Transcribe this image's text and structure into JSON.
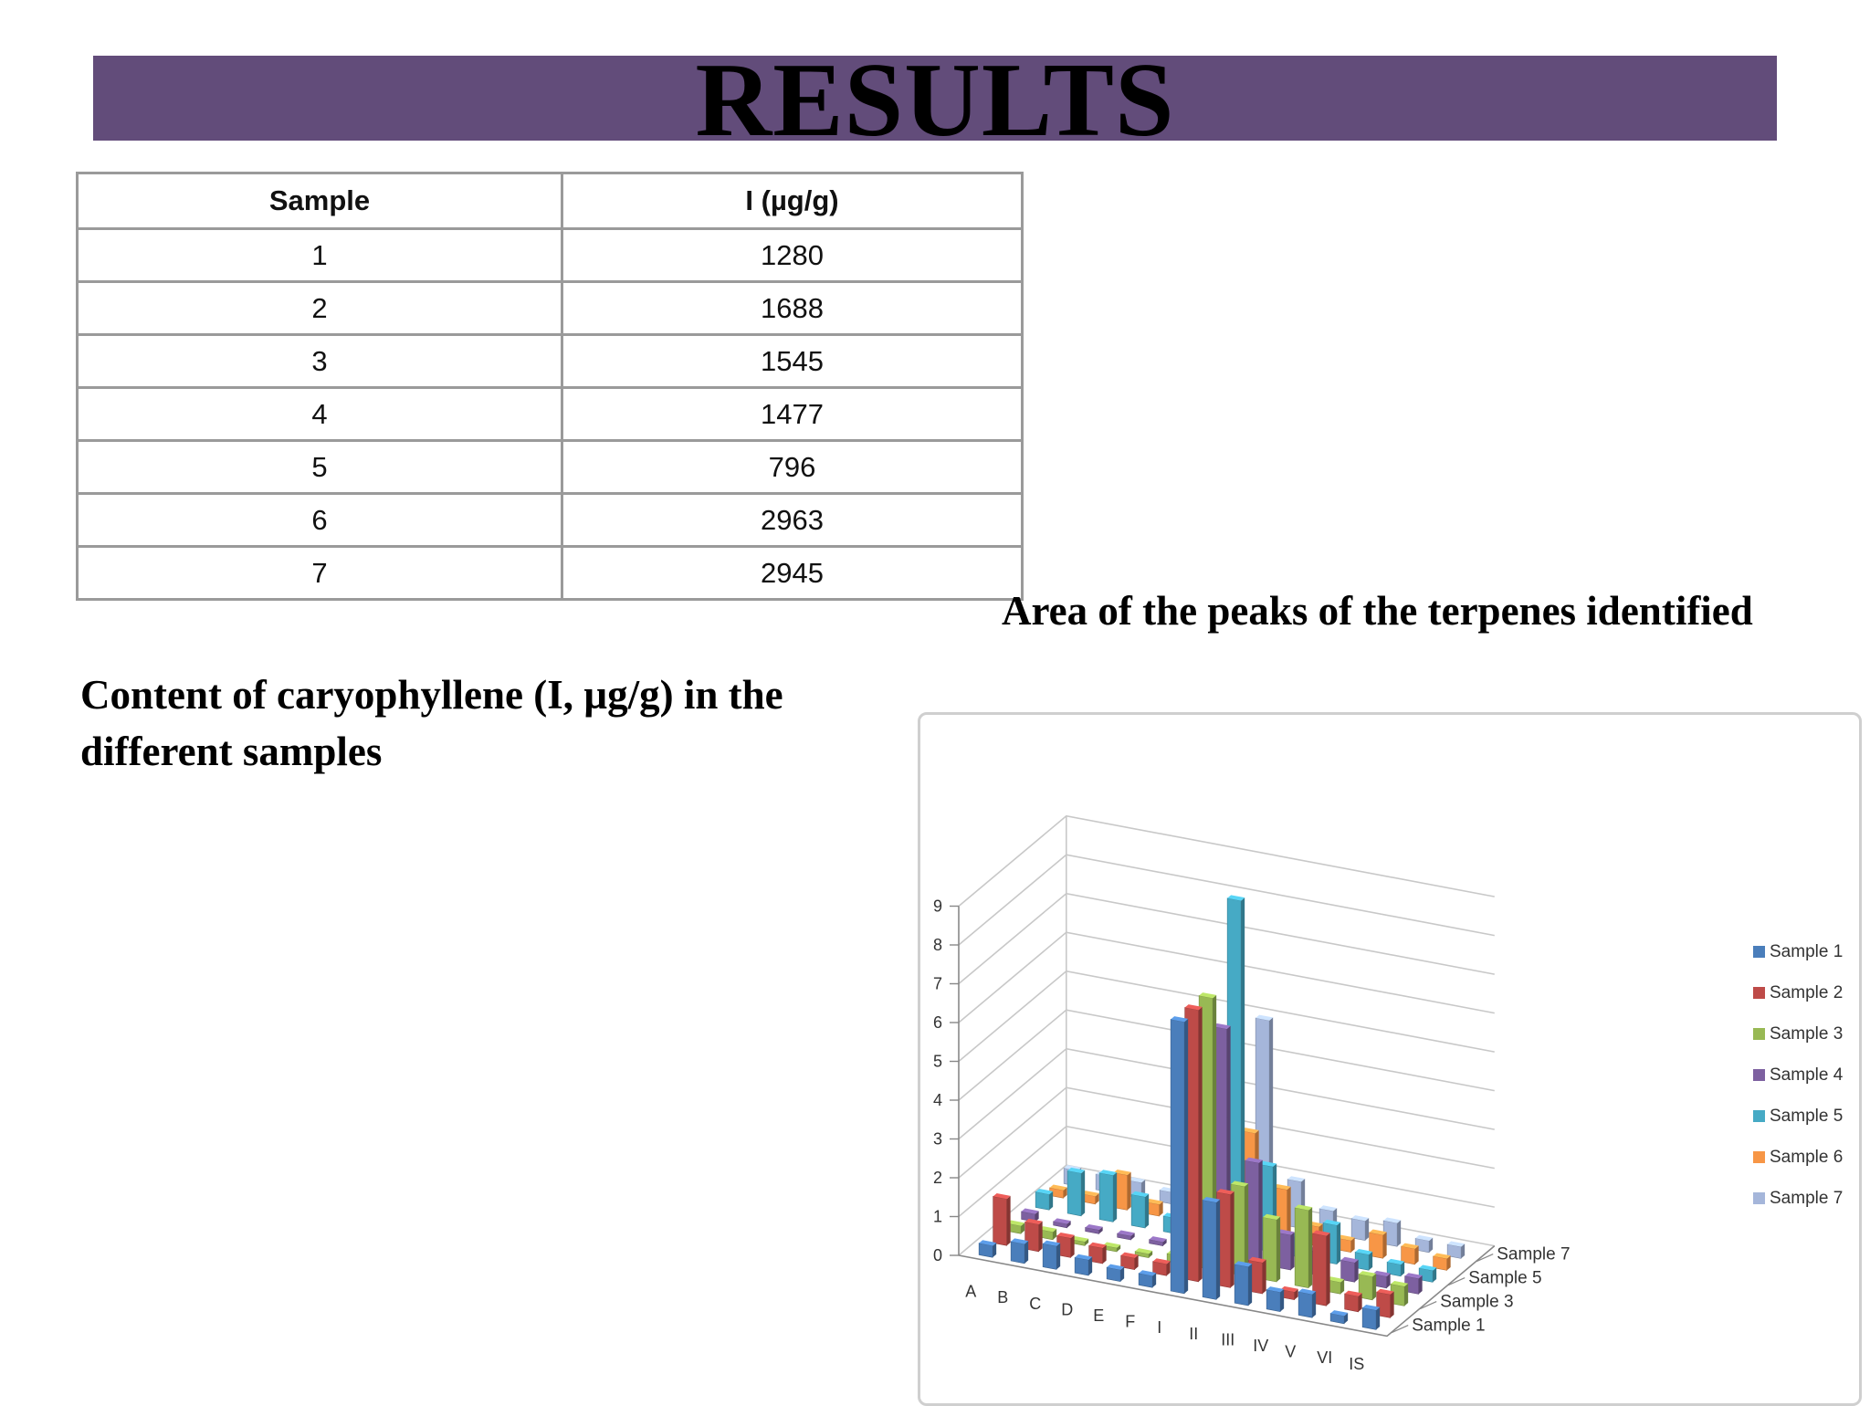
{
  "header": {
    "title": "RESULTS"
  },
  "table": {
    "columns": [
      "Sample",
      "I (µg/g)"
    ],
    "rows": [
      [
        "1",
        "1280"
      ],
      [
        "2",
        "1688"
      ],
      [
        "3",
        "1545"
      ],
      [
        "4",
        "1477"
      ],
      [
        "5",
        "796"
      ],
      [
        "6",
        "2963"
      ],
      [
        "7",
        "2945"
      ]
    ]
  },
  "captions": {
    "left": "Content of caryophyllene (I, µg/g) in the different samples",
    "right": "Area of the peaks of the terpenes identified"
  },
  "chart_data": {
    "type": "bar",
    "variant": "3d-clustered-column",
    "title": "",
    "xlabel": "",
    "ylabel": "",
    "ylim": [
      0,
      9
    ],
    "yticks": [
      0,
      1,
      2,
      3,
      4,
      5,
      6,
      7,
      8,
      9
    ],
    "grid": true,
    "legend": "right",
    "categories": [
      "A",
      "B",
      "C",
      "D",
      "E",
      "F",
      "I",
      "II",
      "III",
      "IV",
      "V",
      "VI",
      "IS"
    ],
    "depth_labels": [
      "Sample 1",
      "Sample 3",
      "Sample 5",
      "Sample 7"
    ],
    "series": [
      {
        "name": "Sample 1",
        "color": "#4a7ebb",
        "values": [
          0.3,
          0.5,
          0.6,
          0.4,
          0.3,
          0.3,
          7.0,
          2.5,
          1.0,
          0.5,
          0.6,
          0.2,
          0.5
        ]
      },
      {
        "name": "Sample 2",
        "color": "#be4b48",
        "values": [
          1.2,
          0.7,
          0.5,
          0.4,
          0.3,
          0.3,
          7.0,
          2.4,
          0.8,
          0.2,
          1.8,
          0.4,
          0.6
        ]
      },
      {
        "name": "Sample 3",
        "color": "#98b954",
        "values": [
          0.2,
          0.2,
          0.1,
          0.1,
          0.1,
          0.2,
          7.0,
          2.3,
          1.6,
          2.0,
          0.3,
          0.6,
          0.5
        ]
      },
      {
        "name": "Sample 4",
        "color": "#7d60a0",
        "values": [
          0.2,
          0.1,
          0.1,
          0.1,
          0.1,
          0.1,
          5.9,
          2.6,
          0.9,
          0.6,
          0.5,
          0.3,
          0.4
        ]
      },
      {
        "name": "Sample 5",
        "color": "#46aac5",
        "values": [
          0.4,
          1.1,
          1.2,
          0.8,
          0.4,
          0.3,
          8.9,
          2.2,
          0.5,
          1.0,
          0.4,
          0.3,
          0.3
        ]
      },
      {
        "name": "Sample 6",
        "color": "#f79646",
        "values": [
          0.2,
          0.2,
          0.9,
          0.3,
          0.2,
          0.2,
          2.6,
          1.3,
          0.5,
          0.3,
          0.6,
          0.4,
          0.3
        ]
      },
      {
        "name": "Sample 7",
        "color": "#a5b6da",
        "values": [
          0.4,
          0.4,
          0.4,
          0.3,
          0.2,
          0.2,
          5.2,
          1.2,
          0.6,
          0.5,
          0.6,
          0.3,
          0.3
        ]
      }
    ]
  }
}
